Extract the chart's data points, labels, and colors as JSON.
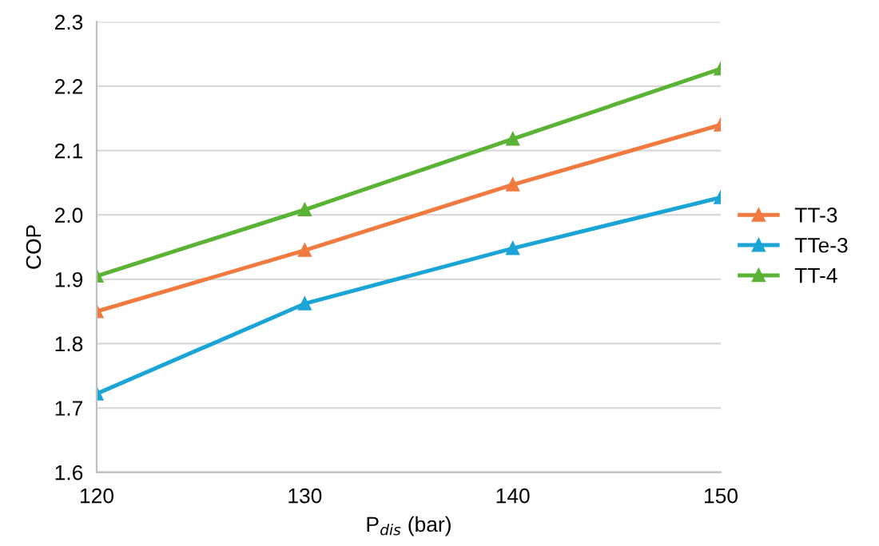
{
  "chart_data": {
    "type": "line",
    "xlabel": "P$_{dis}$ (bar)",
    "ylabel": "COP",
    "x": [
      120,
      130,
      140,
      150
    ],
    "series": [
      {
        "name": "TT-3",
        "color": "#f07a40",
        "values": [
          1.85,
          1.945,
          2.047,
          2.14
        ]
      },
      {
        "name": "TTe-3",
        "color": "#1ba5d6",
        "values": [
          1.722,
          1.862,
          1.948,
          2.027
        ]
      },
      {
        "name": "TT-4",
        "color": "#5bb336",
        "values": [
          1.905,
          2.008,
          2.118,
          2.227
        ]
      }
    ],
    "xlim": [
      120,
      150
    ],
    "xticks": [
      120,
      130,
      140,
      150
    ],
    "ylim": [
      1.6,
      2.3
    ],
    "yticks": [
      1.6,
      1.7,
      1.8,
      1.9,
      {
        "value": 2,
        "label": "2.0"
      },
      2.1,
      2.2,
      2.3
    ],
    "grid": "y",
    "legend": "right",
    "marker": "triangle",
    "line_style": "solid"
  }
}
